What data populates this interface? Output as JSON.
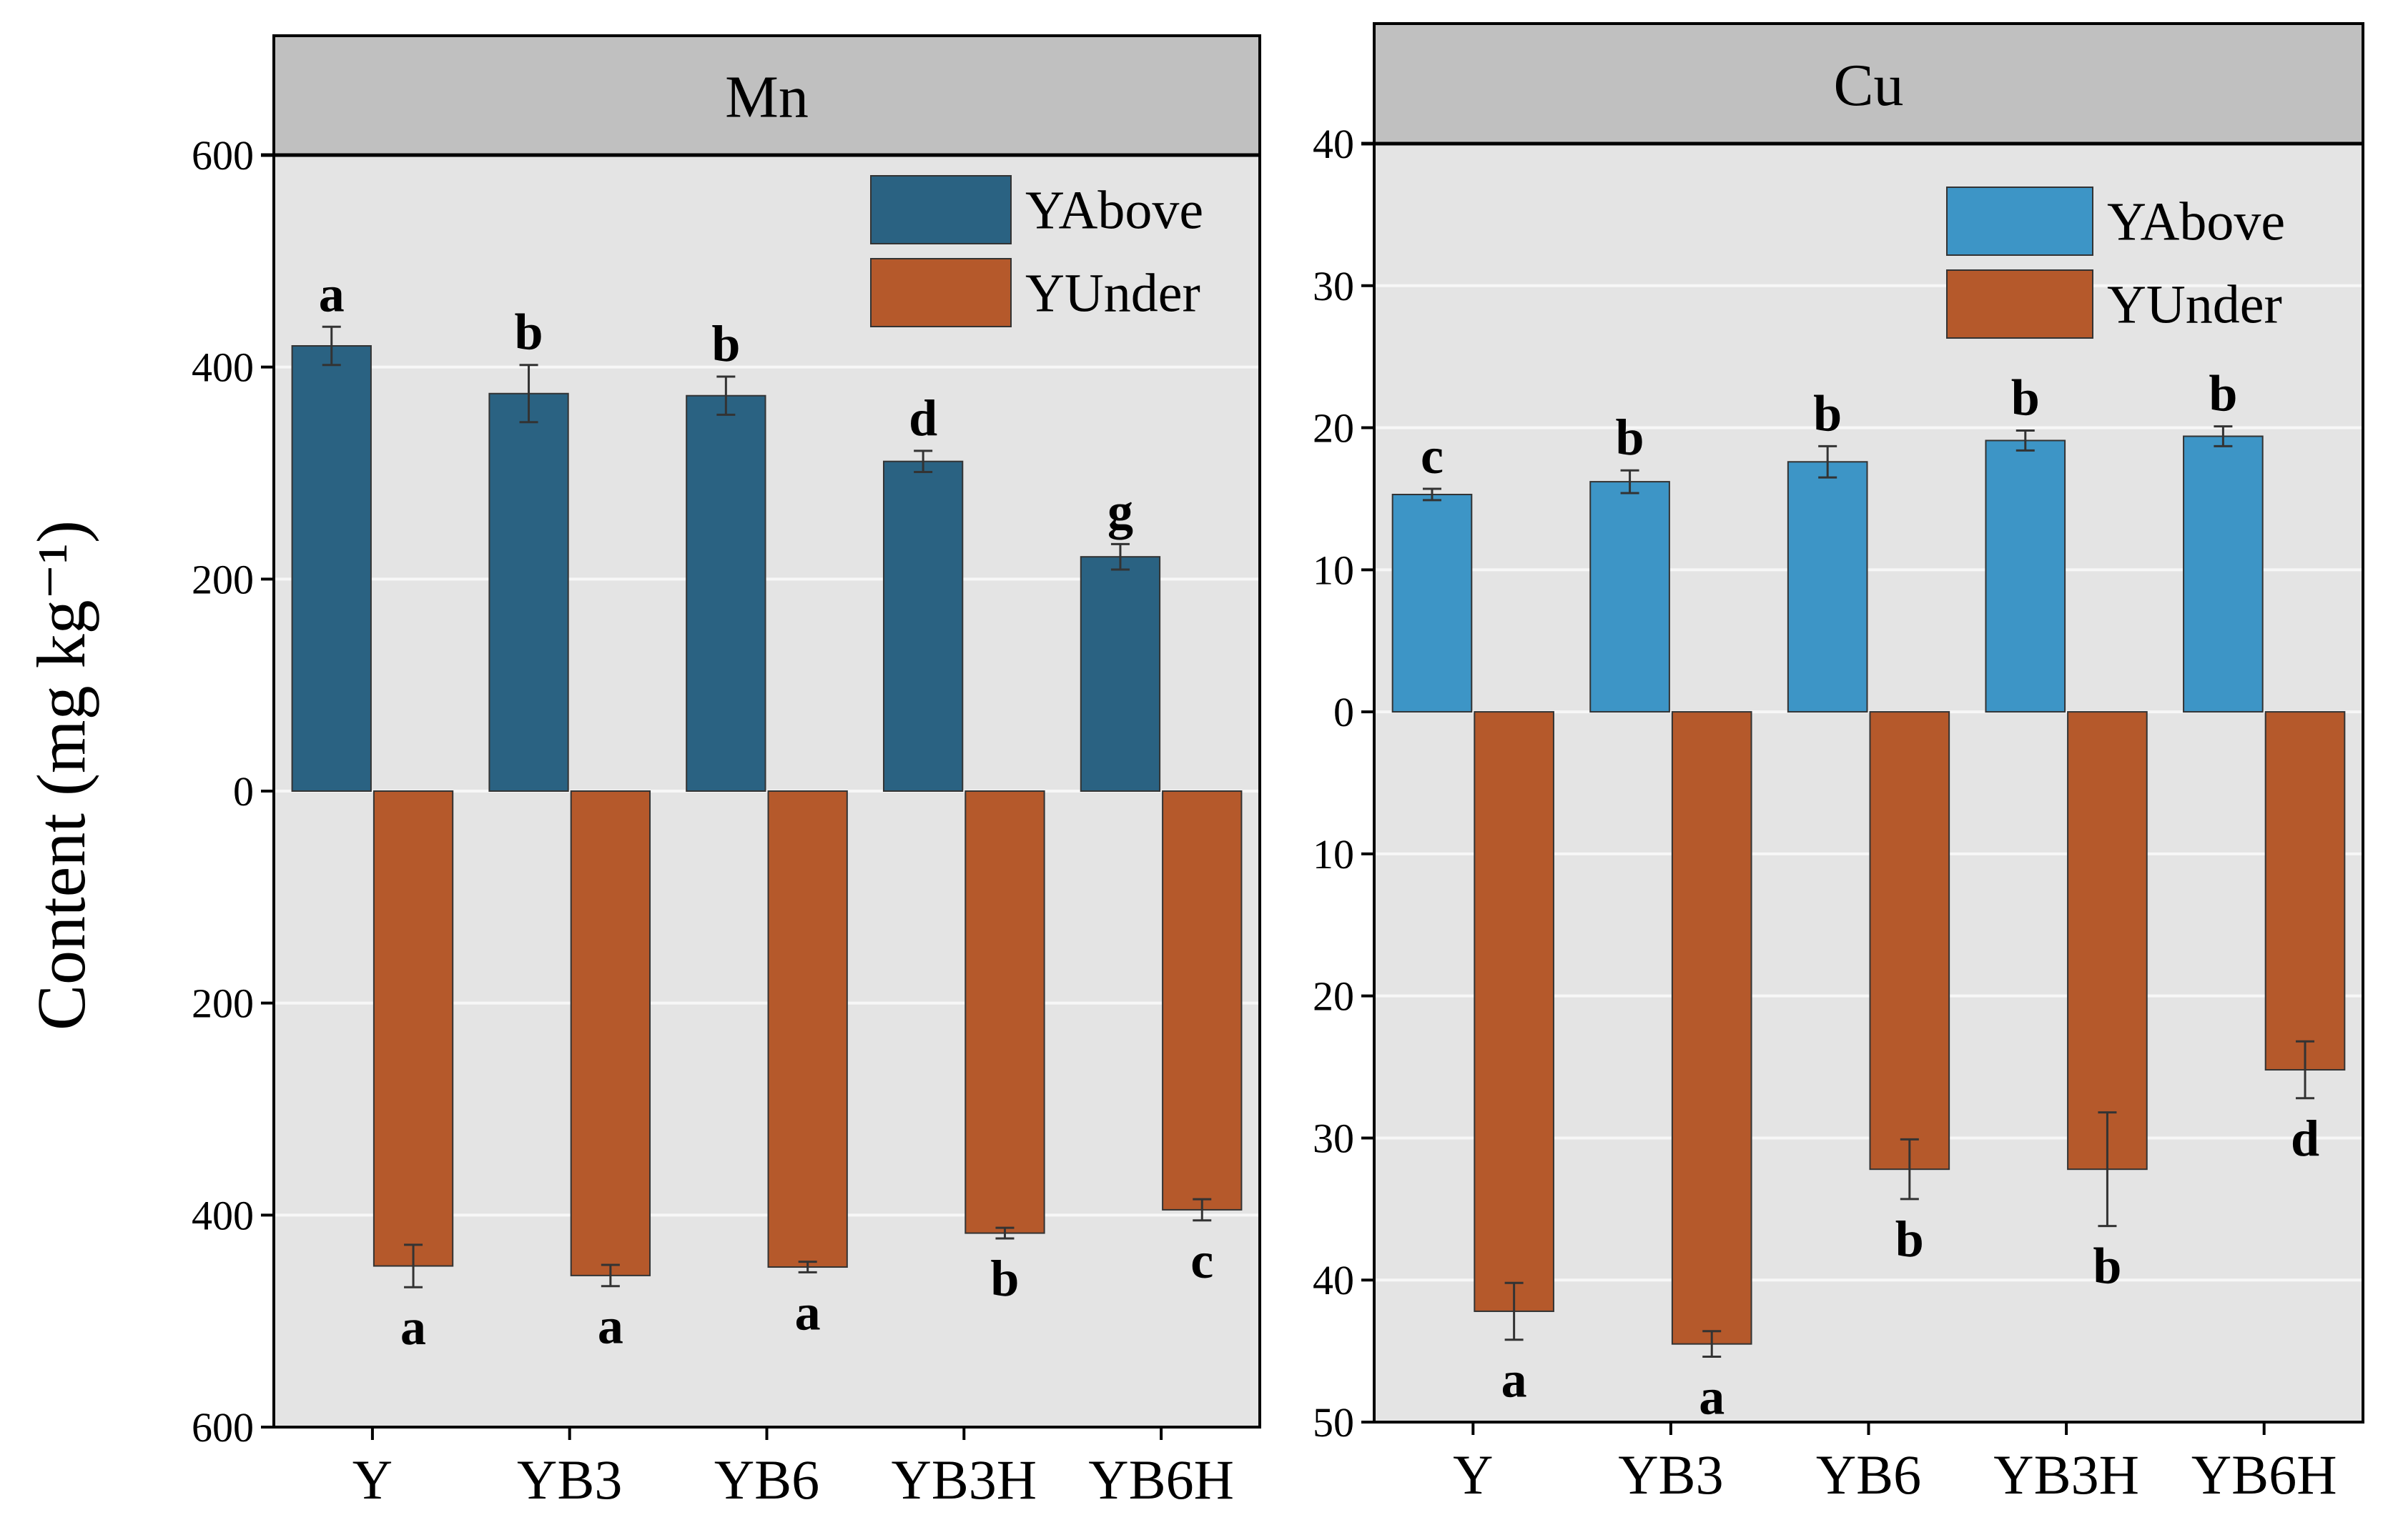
{
  "y_axis_label": "Content (mg kg⁻¹)",
  "colors": {
    "panel_bg": "#e4e4e4",
    "header_bg": "#c0c0c0",
    "grid": "#f7f7f7",
    "bar_stroke": "#333333",
    "error_bar": "#333333"
  },
  "chart_data": [
    {
      "type": "bar",
      "title": "Mn",
      "xlabel": "",
      "ylabel": "Content (mg kg⁻¹)",
      "categories": [
        "Y",
        "YB3",
        "YB6",
        "YB3H",
        "YB6H"
      ],
      "ylim": [
        -600,
        600
      ],
      "yticks": [
        600,
        400,
        200,
        0,
        -200,
        -400,
        -600
      ],
      "ytick_labels": [
        "600",
        "400",
        "200",
        "0",
        "200",
        "400",
        "600"
      ],
      "grid": true,
      "legend_position": "top-right",
      "series": [
        {
          "name": "YAbove",
          "color": "#2a6282",
          "values": [
            420,
            375,
            373,
            311,
            221
          ],
          "errors": [
            18,
            27,
            18,
            10,
            12
          ],
          "letters": [
            "a",
            "b",
            "b",
            "d",
            "g"
          ]
        },
        {
          "name": "YUnder",
          "color": "#b5592b",
          "values": [
            -448,
            -457,
            -449,
            -417,
            -395
          ],
          "errors": [
            20,
            10,
            5,
            5,
            10
          ],
          "letters": [
            "a",
            "a",
            "a",
            "b",
            "c"
          ]
        }
      ]
    },
    {
      "type": "bar",
      "title": "Cu",
      "xlabel": "",
      "ylabel": "",
      "categories": [
        "Y",
        "YB3",
        "YB6",
        "YB3H",
        "YB6H"
      ],
      "ylim": [
        -50,
        40
      ],
      "yticks": [
        40,
        30,
        20,
        10,
        0,
        -10,
        -20,
        -30,
        -40,
        -50
      ],
      "ytick_labels": [
        "40",
        "30",
        "20",
        "10",
        "0",
        "10",
        "20",
        "30",
        "40",
        "50"
      ],
      "grid": true,
      "legend_position": "top-right",
      "series": [
        {
          "name": "YAbove",
          "color": "#3d95c6",
          "values": [
            15.3,
            16.2,
            17.6,
            19.1,
            19.4
          ],
          "errors": [
            0.4,
            0.8,
            1.1,
            0.7,
            0.7
          ],
          "letters": [
            "c",
            "b",
            "b",
            "b",
            "b"
          ]
        },
        {
          "name": "YUnder",
          "color": "#b5592b",
          "values": [
            -42.2,
            -44.5,
            -32.2,
            -32.2,
            -25.2
          ],
          "errors": [
            2.0,
            0.9,
            2.1,
            4.0,
            2.0
          ],
          "letters": [
            "a",
            "a",
            "b",
            "b",
            "d"
          ]
        }
      ]
    }
  ]
}
